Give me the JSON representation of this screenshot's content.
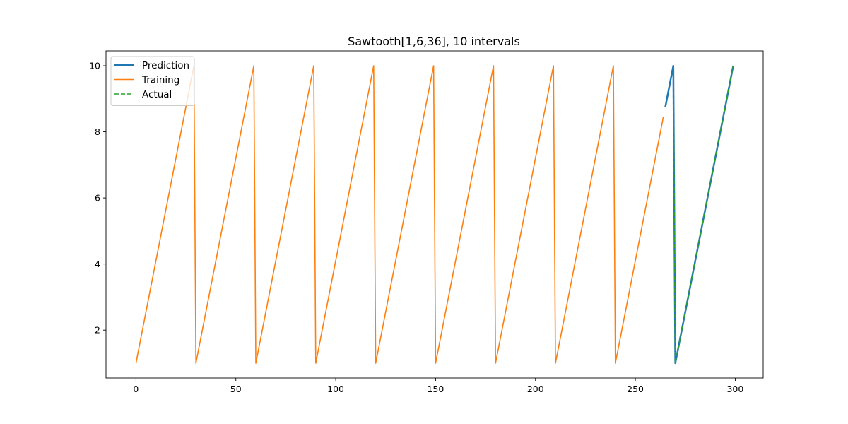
{
  "chart_data": {
    "type": "line",
    "title": "Sawtooth[1,6,36], 10 intervals",
    "xlabel": "",
    "ylabel": "",
    "xlim": [
      -15,
      314
    ],
    "ylim": [
      0.55,
      10.45
    ],
    "x_ticks": [
      0,
      50,
      100,
      150,
      200,
      250,
      300
    ],
    "y_ticks": [
      2,
      4,
      6,
      8,
      10
    ],
    "x_tick_labels": [
      "0",
      "50",
      "100",
      "150",
      "200",
      "250",
      "300"
    ],
    "y_tick_labels": [
      "2",
      "4",
      "6",
      "8",
      "10"
    ],
    "grid": false,
    "legend_position": "top-left",
    "series": [
      {
        "name": "Training",
        "color": "#ff7f0e",
        "style": "solid",
        "points": [
          [
            0,
            1
          ],
          [
            29,
            10
          ],
          [
            30,
            1
          ],
          [
            59,
            10
          ],
          [
            60,
            1
          ],
          [
            89,
            10
          ],
          [
            90,
            1
          ],
          [
            119,
            10
          ],
          [
            120,
            1
          ],
          [
            149,
            10
          ],
          [
            150,
            1
          ],
          [
            179,
            10
          ],
          [
            180,
            1
          ],
          [
            209,
            10
          ],
          [
            210,
            1
          ],
          [
            239,
            10
          ],
          [
            240,
            1
          ],
          [
            264,
            8.45
          ]
        ]
      },
      {
        "name": "Prediction",
        "color": "#1f77b4",
        "style": "solid",
        "points": [
          [
            265,
            8.75
          ],
          [
            269,
            10
          ],
          [
            270,
            1
          ],
          [
            299,
            10
          ]
        ]
      },
      {
        "name": "Actual",
        "color": "#2ca02c",
        "style": "dashed",
        "points": [
          [
            269,
            10
          ],
          [
            270,
            1
          ],
          [
            299,
            10
          ]
        ]
      }
    ],
    "legend": [
      {
        "name": "Prediction",
        "color": "#1f77b4",
        "style": "solid"
      },
      {
        "name": "Training",
        "color": "#ff7f0e",
        "style": "solid"
      },
      {
        "name": "Actual",
        "color": "#2ca02c",
        "style": "dashed"
      }
    ]
  }
}
